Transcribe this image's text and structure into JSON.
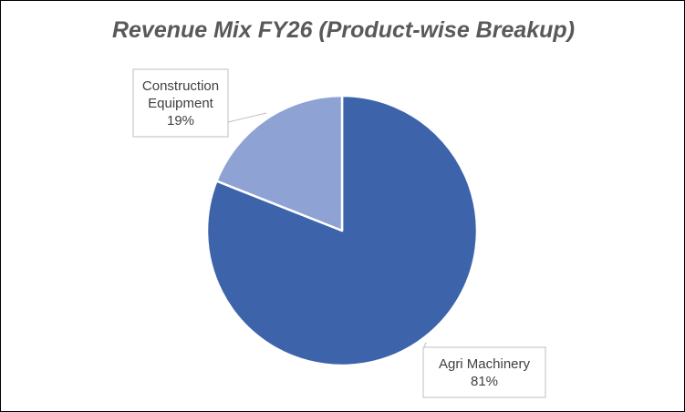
{
  "chart_data": {
    "type": "pie",
    "title": "Revenue Mix FY26 (Product-wise Breakup)",
    "slices": [
      {
        "name": "Agri Machinery",
        "value": 81,
        "label_lines": [
          "Agri Machinery",
          "81%"
        ],
        "color": "#3d63ab"
      },
      {
        "name": "Construction Equipment",
        "value": 19,
        "label_lines": [
          "Construction",
          "Equipment",
          "19%"
        ],
        "color": "#8ea2d4"
      }
    ],
    "legend": "none"
  }
}
